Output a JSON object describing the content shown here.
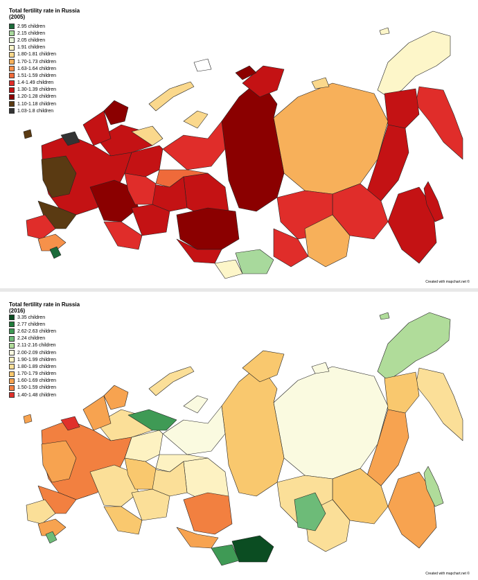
{
  "maps": [
    {
      "title_line1": "Total fertility rate in Russia",
      "title_line2": "(2005)",
      "legend": [
        {
          "label": "2.95 children",
          "color": "#1b6b3a"
        },
        {
          "label": "2.15 children",
          "color": "#a8d99c"
        },
        {
          "label": "2.05 children",
          "color": "#e9f5d8"
        },
        {
          "label": "1.91 children",
          "color": "#fdf6c9"
        },
        {
          "label": "1.80-1.81 children",
          "color": "#fad88c"
        },
        {
          "label": "1.70-1.73 children",
          "color": "#f7b05a"
        },
        {
          "label": "1.63-1.64 children",
          "color": "#f6914a"
        },
        {
          "label": "1.51-1.59 children",
          "color": "#ef6a3a"
        },
        {
          "label": "1.4-1.49 children",
          "color": "#e02d2a"
        },
        {
          "label": "1.30-1.39 children",
          "color": "#c41214"
        },
        {
          "label": "1.20-1.28 children",
          "color": "#8b0000"
        },
        {
          "label": "1.10-1.18 children",
          "color": "#5a3a12"
        },
        {
          "label": "1.03-1.8 children",
          "color": "#333333"
        }
      ],
      "credit": "Created with mapchart.net ©"
    },
    {
      "title_line1": "Total fertility rate in Russia",
      "title_line2": "(2016)",
      "legend": [
        {
          "label": "3.35 children",
          "color": "#0b4d22"
        },
        {
          "label": "2.77 children",
          "color": "#1f7a3a"
        },
        {
          "label": "2.62-2.63 children",
          "color": "#3f9a55"
        },
        {
          "label": "2.24 children",
          "color": "#6dbb78"
        },
        {
          "label": "2.11-2.16 children",
          "color": "#b0dc9a"
        },
        {
          "label": "2.00-2.09 children",
          "color": "#fafae0"
        },
        {
          "label": "1.90-1.99 children",
          "color": "#fdf2c2"
        },
        {
          "label": "1.80-1.89 children",
          "color": "#fbdf98"
        },
        {
          "label": "1.70-1.79 children",
          "color": "#f9c86e"
        },
        {
          "label": "1.60-1.69 children",
          "color": "#f7a350"
        },
        {
          "label": "1.50-1.59 children",
          "color": "#f28040"
        },
        {
          "label": "1.40-1.48 children",
          "color": "#e0302b"
        }
      ],
      "credit": "Created with mapchart.net ©"
    }
  ]
}
